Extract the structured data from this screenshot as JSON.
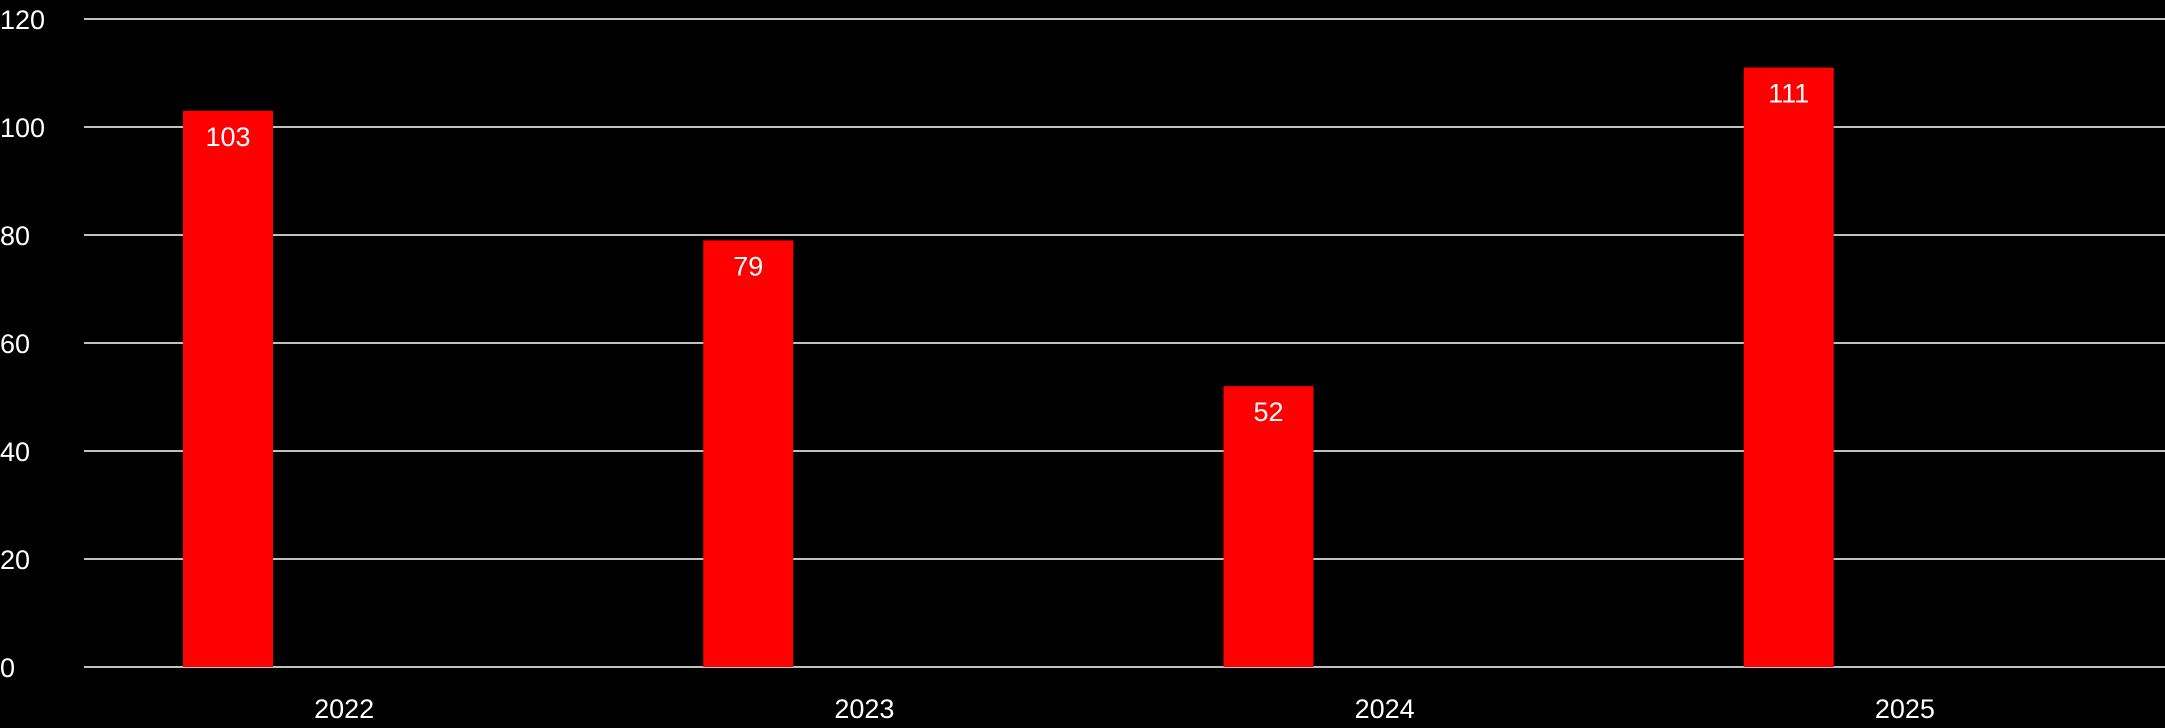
{
  "chart_data": {
    "type": "bar",
    "title": "",
    "xlabel": "",
    "ylabel": "",
    "categories": [
      "2022",
      "2023",
      "2024",
      "2025"
    ],
    "series": [
      {
        "values": [
          103,
          79,
          52,
          111
        ]
      }
    ],
    "ylim": [
      0,
      120
    ],
    "yticks": [
      0,
      20,
      40,
      60,
      80,
      100,
      120
    ],
    "ytick_labels": [
      "0",
      "20",
      "40",
      "60",
      "80",
      "100",
      "120"
    ],
    "grid": true,
    "legend": "none",
    "data_labels": true
  },
  "colors": {
    "background": "#000000",
    "bar": "#ff0000",
    "gridline": "#ffffff",
    "text": "#ffffff"
  }
}
